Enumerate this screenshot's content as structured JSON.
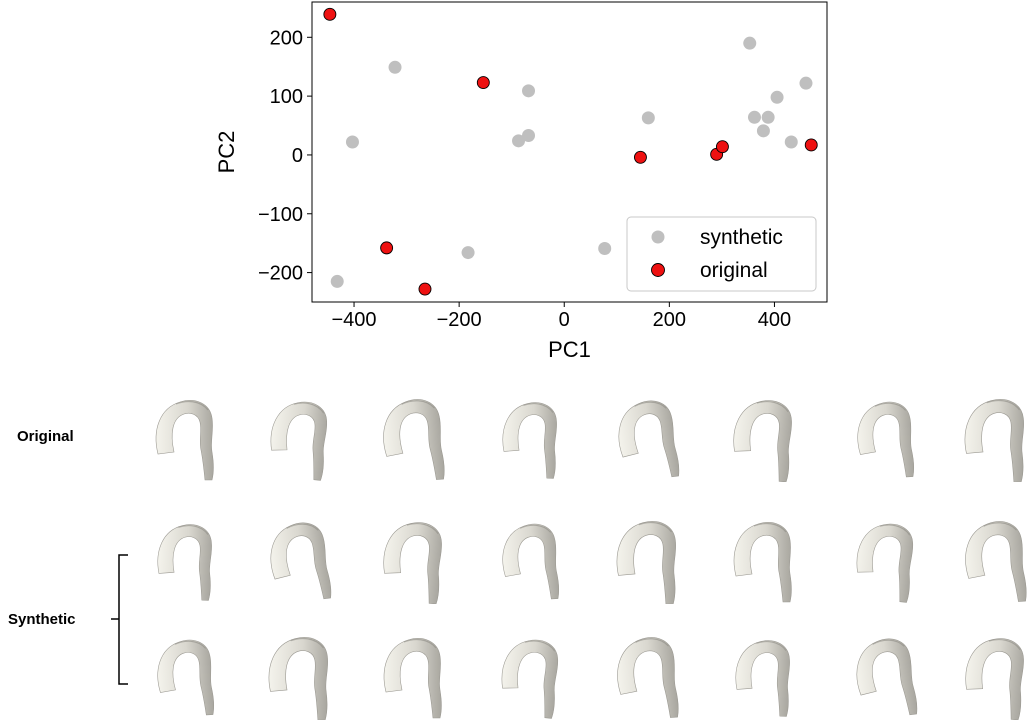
{
  "chart_data": {
    "type": "scatter",
    "xlabel": "PC1",
    "ylabel": "PC2",
    "xlim": [
      -480,
      500
    ],
    "ylim": [
      -250,
      260
    ],
    "x_ticks": [
      -400,
      -200,
      0,
      200,
      400
    ],
    "y_ticks": [
      -200,
      -100,
      0,
      100,
      200
    ],
    "x_tick_labels": [
      "−400",
      "−200",
      "0",
      "200",
      "400"
    ],
    "y_tick_labels": [
      "−200",
      "−100",
      "0",
      "100",
      "200"
    ],
    "grid": false,
    "legend_position": "bottom-right",
    "series": [
      {
        "name": "synthetic",
        "color": "#bfbfbf",
        "points": [
          [
            -322,
            149
          ],
          [
            -403,
            22
          ],
          [
            -432,
            -215
          ],
          [
            -183,
            -166
          ],
          [
            -68,
            109
          ],
          [
            -68,
            33
          ],
          [
            -87,
            24
          ],
          [
            77,
            -159
          ],
          [
            160,
            63
          ],
          [
            353,
            190
          ],
          [
            362,
            64
          ],
          [
            388,
            64
          ],
          [
            379,
            41
          ],
          [
            405,
            98
          ],
          [
            432,
            22
          ],
          [
            460,
            122
          ]
        ]
      },
      {
        "name": "original",
        "color": "#ee1111",
        "points": [
          [
            -446,
            239
          ],
          [
            -154,
            123
          ],
          [
            -338,
            -158
          ],
          [
            -265,
            -228
          ],
          [
            145,
            -4
          ],
          [
            290,
            1
          ],
          [
            301,
            14
          ],
          [
            470,
            17
          ]
        ]
      }
    ]
  },
  "rows": {
    "original_label": "Original",
    "synthetic_label": "Synthetic"
  }
}
